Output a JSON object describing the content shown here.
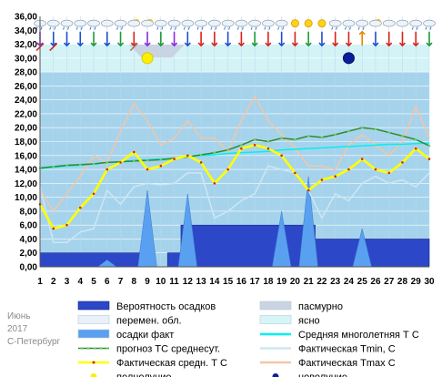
{
  "chart_data": {
    "type": "line",
    "x": [
      1,
      2,
      3,
      4,
      5,
      6,
      7,
      8,
      9,
      10,
      11,
      12,
      13,
      14,
      15,
      16,
      17,
      18,
      19,
      20,
      21,
      22,
      23,
      24,
      25,
      26,
      27,
      28,
      29,
      30
    ],
    "ylim": [
      0,
      36
    ],
    "yticks": [
      "0,00",
      "2,00",
      "4,00",
      "6,00",
      "8,00",
      "10,00",
      "12,00",
      "14,00",
      "16,00",
      "18,00",
      "20,00",
      "22,00",
      "24,00",
      "26,00",
      "28,00",
      "30,00",
      "32,00",
      "34,00",
      "36,00"
    ],
    "grid": true,
    "series": [
      {
        "name": "Вероятность осадков",
        "kind": "step-area",
        "color": "#2d47c9",
        "values": [
          2,
          2,
          2,
          2,
          2,
          2,
          2,
          2,
          2,
          0,
          2,
          6,
          6,
          6,
          6,
          6,
          6,
          6,
          6,
          6,
          6,
          4,
          4,
          4,
          4,
          4,
          4,
          4,
          4,
          4
        ]
      },
      {
        "name": "осадки факт",
        "kind": "spike-area",
        "color": "#5aa0f0",
        "values": [
          0,
          0,
          0,
          0,
          0,
          1,
          0,
          0,
          11,
          0,
          0,
          10.5,
          0,
          0,
          0,
          0,
          0,
          0,
          8,
          0,
          13,
          0,
          0,
          0,
          5.5,
          0,
          0,
          0,
          0,
          0
        ]
      },
      {
        "name": "Фактическая Tmin, C",
        "color": "#cde7f3",
        "values": [
          11.5,
          3.5,
          3.5,
          5,
          5.5,
          11,
          9,
          11.5,
          12,
          11.8,
          12,
          13.5,
          13.5,
          7,
          8,
          9.5,
          10.5,
          14.5,
          14,
          13.5,
          11,
          7,
          10.5,
          9.5,
          12,
          13,
          12,
          12.5,
          11.5,
          13.5
        ]
      },
      {
        "name": "Фактическая Tmax C",
        "color": "#f2c6a8",
        "values": [
          11,
          8,
          10.5,
          13,
          16,
          15,
          19.5,
          23.5,
          21,
          17.5,
          18.5,
          21,
          18.5,
          18.5,
          16.5,
          21,
          24.5,
          21,
          19,
          17,
          14.5,
          14.5,
          14,
          17.5,
          19,
          17.5,
          16,
          18,
          23,
          18.5
        ]
      },
      {
        "name": "Средняя многолетняя Т С",
        "color": "#00f0f0",
        "values": [
          14.1,
          14.3,
          14.5,
          14.6,
          14.8,
          15,
          15.1,
          15.3,
          15.4,
          15.5,
          15.6,
          15.8,
          16,
          16.1,
          16.3,
          16.4,
          16.5,
          16.6,
          16.8,
          16.9,
          17,
          17.1,
          17.2,
          17.3,
          17.4,
          17.5,
          17.6,
          17.6,
          17.7,
          17.8
        ]
      },
      {
        "name": "прогноз ТС среднесут.",
        "color": "#2e8b2e",
        "values": [
          14.2,
          14.4,
          14.6,
          14.7,
          14.8,
          15,
          15.1,
          15.2,
          15.3,
          15.4,
          15.6,
          15.8,
          16.1,
          16.4,
          16.8,
          17.5,
          18.3,
          18,
          18.5,
          18.3,
          18.8,
          18.6,
          19,
          19.5,
          20,
          19.8,
          19.3,
          18.8,
          18.3,
          17.4
        ]
      },
      {
        "name": "Фактическая средн. Т С",
        "color": "#ffff00",
        "values": [
          9,
          5.5,
          6,
          8.5,
          10.5,
          14,
          15,
          16.5,
          14,
          14.5,
          15.5,
          16,
          15,
          12,
          14,
          17,
          17.5,
          17,
          16,
          13.5,
          11,
          12.5,
          13,
          14,
          15.5,
          14,
          13.5,
          15,
          17,
          15.5
        ]
      }
    ],
    "moon": [
      {
        "name": "полнолуние",
        "x": 9,
        "y": 30,
        "color": "#ffee00"
      },
      {
        "name": "новолуние",
        "x": 24,
        "y": 30,
        "color": "#0a1f99"
      }
    ],
    "weather_icons": [
      "rain",
      "rain",
      "rain",
      "rain",
      "rain",
      "cloud",
      "rain",
      "sun-cloud",
      "sun-cloud",
      "rain",
      "rain",
      "rain",
      "rain",
      "rain",
      "rain",
      "rain",
      "rain",
      "rain",
      "rain",
      "sun",
      "sun",
      "sun",
      "rain",
      "rain",
      "rain",
      "sun-cloud",
      "cloud",
      "cloud",
      "rain",
      "rain"
    ],
    "wind_arrows": [
      "d-purple",
      "d-blue",
      "d-blue",
      "d-blue",
      "d-green",
      "d-blue",
      "d-green",
      "d-red",
      "d-purple",
      "d-green",
      "d-purple",
      "d-blue",
      "d-red",
      "d-red",
      "d-blue",
      "d-red",
      "d-green",
      "d-red",
      "d-blue",
      "d-red",
      "d-green",
      "d-blue",
      "d-red",
      "d-red",
      "u-orange",
      "d-blue",
      "d-red",
      "d-red",
      "d-red",
      "d-green"
    ],
    "wind_markers": [
      "ne-red",
      "ne-red",
      "",
      "",
      "",
      "",
      "",
      "ne-brown",
      "",
      "",
      "",
      "",
      "",
      "",
      "",
      "",
      "",
      "",
      "",
      "",
      "",
      "",
      "",
      "",
      "",
      "",
      "",
      "",
      "",
      ""
    ]
  },
  "legend": {
    "left": [
      {
        "label": "Вероятность осадков",
        "symbol": "box",
        "color": "#2d47c9"
      },
      {
        "label": "перемен. обл.",
        "symbol": "box",
        "color": "#e8f1f9"
      },
      {
        "label": "осадки факт",
        "symbol": "box",
        "color": "#5aa0f0"
      },
      {
        "label": "прогноз ТС среднесут.",
        "symbol": "dotline",
        "color": "#2e8b2e"
      },
      {
        "label": "Фактическая средн. Т С",
        "symbol": "line",
        "color": "#ffff00"
      },
      {
        "label": "полнолуние",
        "symbol": "dot",
        "color": "#ffee00"
      }
    ],
    "right": [
      {
        "label": "пасмурно",
        "symbol": "box",
        "color": "#c9d4e3"
      },
      {
        "label": "ясно",
        "symbol": "box",
        "color": "#d6f5f7"
      },
      {
        "label": "Средняя многолетняя Т С",
        "symbol": "line",
        "color": "#00f0f0"
      },
      {
        "label": "Фактическая Tmin, C",
        "symbol": "line",
        "color": "#cde7f3"
      },
      {
        "label": "Фактическая Tmax C",
        "symbol": "line",
        "color": "#f2c6a8"
      },
      {
        "label": "новолуние",
        "symbol": "dot",
        "color": "#0a1f99"
      }
    ]
  },
  "info": {
    "month": "Июнь",
    "year": "2017",
    "city": "С-Петербург"
  },
  "colors": {
    "plot_bg": "#a6d3ec",
    "band_top": "#ffffff",
    "band_top2": "#d4f3f7",
    "grid": "#ffffff"
  }
}
